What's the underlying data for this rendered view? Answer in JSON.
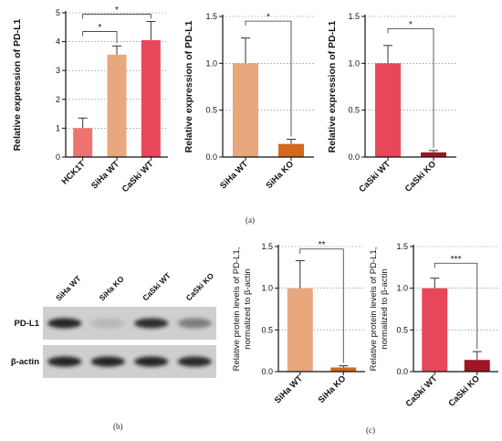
{
  "colors": {
    "HCK1T": "#F0726E",
    "SiHa WT": "#E9A77E",
    "CaSki WT": "#E8475B",
    "SiHa KO": "#D2691E",
    "CaSki KO": "#A01624",
    "blot_dark": "#1a1a1a",
    "blot_bg": "#cfcfcf"
  },
  "captions": {
    "a": "(a)",
    "b": "(b)",
    "c": "(c)"
  },
  "chart_data": [
    {
      "type": "bar",
      "ylabel": "Relative expression of PD-L1",
      "ylim": [
        0,
        5
      ],
      "yticks": [
        "0",
        "1",
        "2",
        "3",
        "4",
        "5"
      ],
      "grid": "horizontal dotted",
      "categories": [
        "HCK1T",
        "SiHa WT",
        "CaSki WT"
      ],
      "values": [
        1.0,
        3.55,
        4.05
      ],
      "errors": [
        0.35,
        0.3,
        0.65
      ],
      "significance": [
        {
          "from": 0,
          "to": 1,
          "label": "*"
        },
        {
          "from": 0,
          "to": 2,
          "label": "*"
        }
      ]
    },
    {
      "type": "bar",
      "ylabel": "Relative expression of PD-L1",
      "ylim": [
        0,
        1.5
      ],
      "yticks": [
        "0.0",
        "0.5",
        "1.0",
        "1.5"
      ],
      "grid": "horizontal dotted",
      "categories": [
        "SiHa WT",
        "SiHa KO"
      ],
      "values": [
        1.0,
        0.14
      ],
      "errors": [
        0.27,
        0.05
      ],
      "significance": [
        {
          "from": 0,
          "to": 1,
          "label": "*"
        }
      ]
    },
    {
      "type": "bar",
      "ylabel": "Relative expression of PD-L1",
      "ylim": [
        0,
        1.5
      ],
      "yticks": [
        "0.0",
        "0.5",
        "1.0",
        "1.5"
      ],
      "grid": "horizontal dotted",
      "categories": [
        "CaSki WT",
        "CaSki KO"
      ],
      "values": [
        1.0,
        0.05
      ],
      "errors": [
        0.19,
        0.02
      ],
      "significance": [
        {
          "from": 0,
          "to": 1,
          "label": "*"
        }
      ]
    },
    {
      "type": "bar",
      "ylabel": "Relative protein levels of PD-L1, normalized to β-actin",
      "ylabel_lines": [
        "Relative protein levels of PD-L1,",
        "normalized to β-actin"
      ],
      "ylim": [
        0,
        1.5
      ],
      "yticks": [
        "0.0",
        "0.5",
        "1.0",
        "1.5"
      ],
      "grid": "horizontal dotted",
      "categories": [
        "SiHa WT",
        "SiHa KO"
      ],
      "values": [
        1.0,
        0.05
      ],
      "errors": [
        0.33,
        0.02
      ],
      "significance": [
        {
          "from": 0,
          "to": 1,
          "label": "**"
        }
      ]
    },
    {
      "type": "bar",
      "ylabel": "Relative protein levels of PD-L1, normalized to β-actin",
      "ylabel_lines": [
        "Relative protein levels of PD-L1,",
        "normalized to β-actin"
      ],
      "ylim": [
        0,
        1.5
      ],
      "yticks": [
        "0.0",
        "0.5",
        "1.0",
        "1.5"
      ],
      "grid": "horizontal dotted",
      "categories": [
        "CaSki WT",
        "CaSki KO"
      ],
      "values": [
        1.0,
        0.14
      ],
      "errors": [
        0.12,
        0.1
      ],
      "significance": [
        {
          "from": 0,
          "to": 1,
          "label": "***"
        }
      ]
    }
  ],
  "blot": {
    "lanes": [
      "SiHa WT",
      "SiHa KO",
      "CaSki WT",
      "CaSki KO"
    ],
    "rows": [
      {
        "label": "PD-L1",
        "intensity": [
          0.95,
          0.12,
          0.9,
          0.45
        ]
      },
      {
        "label": "β-actin",
        "intensity": [
          0.95,
          0.95,
          0.95,
          0.92
        ]
      }
    ]
  }
}
